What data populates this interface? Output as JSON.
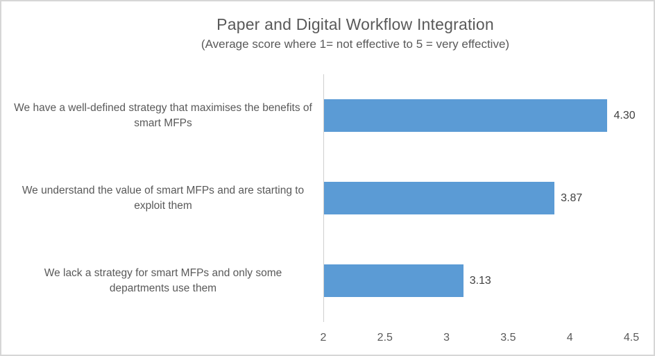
{
  "chart_data": {
    "type": "bar",
    "orientation": "horizontal",
    "title": "Paper and Digital Workflow Integration",
    "subtitle": "(Average score where 1= not effective to 5 = very effective)",
    "categories": [
      "We have a well-defined strategy that maximises the benefits of smart MFPs",
      "We understand the value of smart MFPs and are starting to exploit them",
      "We lack a strategy for smart MFPs and only some departments use them"
    ],
    "values": [
      4.3,
      3.87,
      3.13
    ],
    "data_labels": [
      "4.30",
      "3.87",
      "3.13"
    ],
    "xlabel": "",
    "ylabel": "",
    "xlim": [
      2,
      4.5
    ],
    "x_ticks": [
      2,
      2.5,
      3,
      3.5,
      4,
      4.5
    ],
    "x_tick_labels": [
      "2",
      "2.5",
      "3",
      "3.5",
      "4",
      "4.5"
    ],
    "grid": false,
    "legend": false,
    "colors": {
      "bar": "#5B9BD5",
      "text": "#595959",
      "data_label": "#404040",
      "axis_line": "#CFCFCF",
      "chart_border": "#D6D6D6"
    }
  }
}
